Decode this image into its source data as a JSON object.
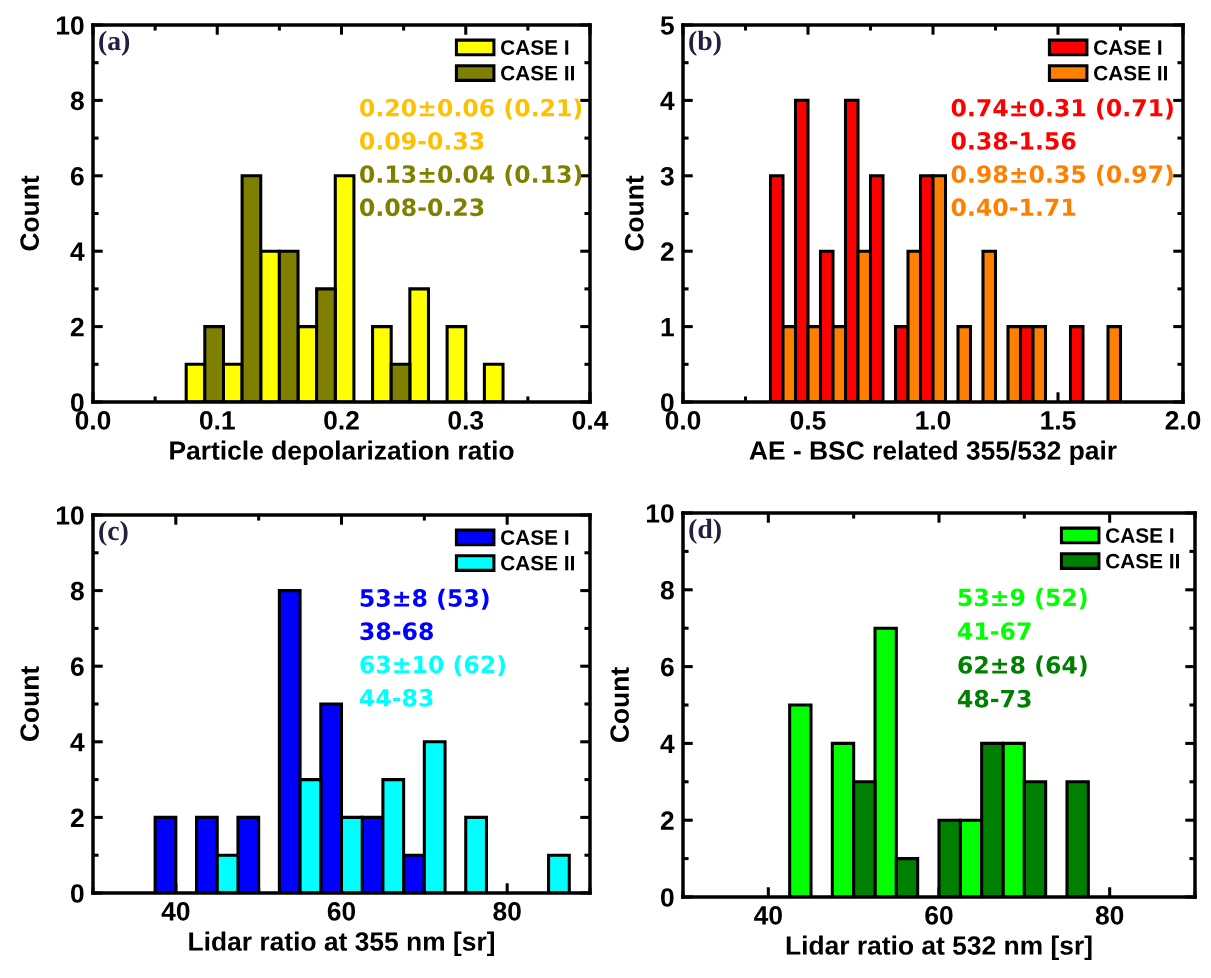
{
  "chart_data": [
    {
      "type": "bar",
      "title": "(a)",
      "xlabel": "Particle depolarization ratio",
      "ylabel": "Count",
      "series": [
        {
          "name": "CASE I",
          "color": "#ffff00",
          "x": [
            0.0825,
            0.1125,
            0.1425,
            0.1725,
            0.2025,
            0.2325,
            0.2625,
            0.2925,
            0.3225
          ],
          "values": [
            1,
            1,
            4,
            2,
            6,
            2,
            3,
            2,
            1
          ]
        },
        {
          "name": "CASE II",
          "color": "#808000",
          "x": [
            0.0975,
            0.1275,
            0.1575,
            0.1875,
            0.2475
          ],
          "values": [
            2,
            6,
            4,
            3,
            1
          ]
        }
      ],
      "xlim": [
        0.0,
        0.4
      ],
      "xticks": [
        {
          "value": 0,
          "label": "0.0"
        },
        0.1,
        0.2,
        0.3,
        0.4
      ],
      "ylim": [
        0,
        10
      ],
      "yticks": [
        0,
        2,
        4,
        6,
        8,
        10
      ],
      "legend": "top right",
      "annotations": [
        "0.20±0.06 (0.21)",
        "0.09-0.33",
        "0.13±0.04 (0.13)",
        "0.08-0.23"
      ]
    },
    {
      "type": "bar",
      "title": "(b)",
      "xlabel": "AE - BSC related 355/532 pair",
      "ylabel": "Count",
      "series": [
        {
          "name": "CASE I",
          "color": "#ff0000",
          "x": [
            0.375,
            0.475,
            0.575,
            0.675,
            0.775,
            0.875,
            0.975,
            1.375,
            1.575
          ],
          "values": [
            3,
            4,
            2,
            4,
            3,
            1,
            3,
            1,
            1
          ]
        },
        {
          "name": "CASE II",
          "color": "#ff8000",
          "x": [
            0.425,
            0.525,
            0.625,
            0.725,
            0.925,
            1.025,
            1.125,
            1.225,
            1.325,
            1.425,
            1.725
          ],
          "values": [
            1,
            1,
            1,
            2,
            2,
            3,
            1,
            2,
            1,
            1,
            1
          ]
        }
      ],
      "xlim": [
        0.0,
        2.0
      ],
      "xticks": [
        {
          "value": 0,
          "label": "0.0"
        },
        0.5,
        {
          "value": 1,
          "label": "1.0"
        },
        1.5,
        {
          "value": 2,
          "label": "2.0"
        }
      ],
      "ylim": [
        0,
        5
      ],
      "yticks": [
        0,
        1,
        2,
        3,
        4,
        5
      ],
      "legend": "top right",
      "annotations": [
        "0.74±0.31 (0.71)",
        "0.38-1.56",
        "0.98±0.35 (0.97)",
        "0.40-1.71"
      ]
    },
    {
      "type": "bar",
      "title": "(c)",
      "xlabel": "Lidar ratio at 355 nm [sr]",
      "ylabel": "Count",
      "series": [
        {
          "name": "CASE I",
          "color": "#0000ff",
          "x": [
            38.75,
            43.75,
            48.75,
            53.75,
            58.75,
            63.75,
            68.75
          ],
          "values": [
            2,
            2,
            2,
            8,
            5,
            2,
            1
          ]
        },
        {
          "name": "CASE II",
          "color": "#00ffff",
          "x": [
            46.25,
            56.25,
            61.25,
            66.25,
            71.25,
            76.25,
            86.25
          ],
          "values": [
            1,
            3,
            2,
            3,
            4,
            2,
            1
          ]
        }
      ],
      "xlim": [
        30,
        90
      ],
      "xticks": [
        40,
        60,
        80
      ],
      "ylim": [
        0,
        10
      ],
      "yticks": [
        0,
        2,
        4,
        6,
        8,
        10
      ],
      "legend": "top right",
      "annotations": [
        "53±8 (53)",
        "38-68",
        "63±10 (62)",
        "44-83"
      ]
    },
    {
      "type": "bar",
      "title": "(d)",
      "xlabel": "Lidar ratio at 532 nm [sr]",
      "ylabel": "Count",
      "series": [
        {
          "name": "CASE I",
          "color": "#00ff00",
          "x": [
            43.75,
            48.75,
            53.75,
            63.75,
            68.75
          ],
          "values": [
            5,
            4,
            7,
            2,
            4
          ]
        },
        {
          "name": "CASE II",
          "color": "#008000",
          "x": [
            51.25,
            56.25,
            61.25,
            66.25,
            71.25,
            76.25
          ],
          "values": [
            3,
            1,
            2,
            4,
            3,
            3
          ]
        }
      ],
      "xlim": [
        30,
        90
      ],
      "xticks": [
        40,
        60,
        80
      ],
      "ylim": [
        0,
        10
      ],
      "yticks": [
        0,
        2,
        4,
        6,
        8,
        10
      ],
      "legend": "top right",
      "annotations": [
        "53±9 (52)",
        "41-67",
        "62±8 (64)",
        "48-73"
      ]
    }
  ]
}
